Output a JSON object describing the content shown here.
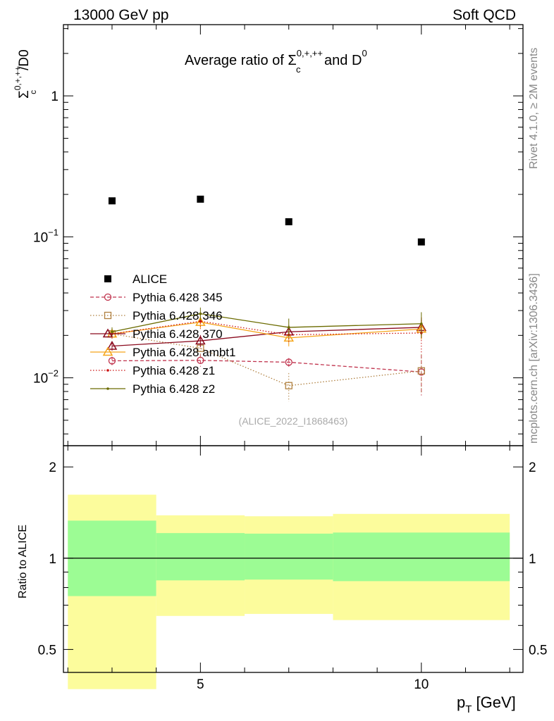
{
  "header": {
    "left": "13000 GeV pp",
    "right": "Soft QCD"
  },
  "side_text": {
    "rivet": "Rivet 4.1.0, ≥ 2M events",
    "mcplots": "mcplots.cern.ch [arXiv:1306.3436]"
  },
  "chart_data": [
    {
      "type": "scatter",
      "panel": "main",
      "title_prefix": "Average ratio of ",
      "title_symbol": "Σ",
      "title_sup": "0,+,++",
      "title_sub": "c",
      "title_mid": " and D",
      "title_sup2": "0",
      "ylabel_symbol": "Σ",
      "ylabel_sup": "0,+,++",
      "ylabel_sub": "c",
      "ylabel_rest": "/D0",
      "watermark": "(ALICE_2022_I1868463)",
      "yscale": "log",
      "ylim": [
        0.0033,
        3.2
      ],
      "xlim": [
        1.9,
        12.3
      ],
      "y_ticks": [
        {
          "value": 1,
          "base": "1",
          "exp": ""
        },
        {
          "value": 0.1,
          "base": "10",
          "exp": "−1"
        },
        {
          "value": 0.01,
          "base": "10",
          "exp": "−2"
        }
      ],
      "series": [
        {
          "name": "ALICE",
          "color": "#000000",
          "marker": "square-filled",
          "line": "none",
          "x": [
            3,
            5,
            7,
            10
          ],
          "y": [
            0.18,
            0.185,
            0.128,
            0.092
          ]
        },
        {
          "name": "Pythia 6.428 345",
          "color": "#c0334d",
          "marker": "circle-open",
          "line": "dashed",
          "x": [
            3,
            5,
            7,
            10
          ],
          "y": [
            0.0132,
            0.0133,
            0.0129,
            0.011
          ],
          "err": [
            0.0009,
            0.0013,
            0.0009,
            0.0035
          ]
        },
        {
          "name": "Pythia 6.428 346",
          "color": "#b08040",
          "marker": "square-open",
          "line": "dotted",
          "x": [
            3,
            5,
            7,
            10
          ],
          "y": [
            0.0205,
            0.0162,
            0.0088,
            0.0112
          ],
          "err": [
            0.0015,
            0.0025,
            0.002,
            0.0035
          ]
        },
        {
          "name": "Pythia 6.428 370",
          "color": "#8b0a1e",
          "marker": "triangle-open",
          "line": "solid",
          "x": [
            3,
            5,
            7,
            10
          ],
          "y": [
            0.0168,
            0.0183,
            0.0212,
            0.0228
          ],
          "err": [
            0.0012,
            0.0018,
            0.0025,
            0.0035
          ]
        },
        {
          "name": "Pythia 6.428 ambt1",
          "color": "#f5a51a",
          "marker": "triangle-open",
          "line": "solid",
          "x": [
            3,
            5,
            7,
            10
          ],
          "y": [
            0.0205,
            0.0248,
            0.0192,
            0.0222
          ],
          "err": [
            0.0015,
            0.0025,
            0.0025,
            0.0035
          ]
        },
        {
          "name": "Pythia 6.428 z1",
          "color": "#cc1010",
          "marker": "dot",
          "line": "dotted",
          "x": [
            3,
            5,
            7,
            10
          ],
          "y": [
            0.0205,
            0.0252,
            0.0202,
            0.0208
          ],
          "err": [
            0.0015,
            0.003,
            0.0028,
            0.006
          ]
        },
        {
          "name": "Pythia 6.428 z2",
          "color": "#6b6b00",
          "marker": "dot",
          "line": "solid",
          "x": [
            3,
            5,
            7,
            10
          ],
          "y": [
            0.0212,
            0.0285,
            0.0228,
            0.0242
          ],
          "err": [
            0.0016,
            0.003,
            0.0035,
            0.005
          ]
        }
      ]
    },
    {
      "type": "area",
      "panel": "ratio",
      "ylabel": "Ratio to ALICE",
      "xlabel_main": "p",
      "xlabel_sub": "T",
      "xlabel_unit": " [GeV]",
      "yscale": "log",
      "ylim": [
        0.42,
        2.35
      ],
      "xlim": [
        1.9,
        12.3
      ],
      "x_ticks": [
        {
          "value": 5,
          "label": "5"
        },
        {
          "value": 10,
          "label": "10"
        }
      ],
      "y_ticks": [
        {
          "value": 2,
          "label": "2"
        },
        {
          "value": 1,
          "label": "1"
        },
        {
          "value": 0.5,
          "label": "0.5"
        }
      ],
      "reference_line": 1,
      "bins": [
        {
          "x0": 2,
          "x1": 4,
          "band1_lo": 0.75,
          "band1_hi": 1.33,
          "band2_lo": 0.37,
          "band2_hi": 1.62
        },
        {
          "x0": 4,
          "x1": 6,
          "band1_lo": 0.845,
          "band1_hi": 1.21,
          "band2_lo": 0.645,
          "band2_hi": 1.385
        },
        {
          "x0": 6,
          "x1": 8,
          "band1_lo": 0.85,
          "band1_hi": 1.205,
          "band2_lo": 0.655,
          "band2_hi": 1.375
        },
        {
          "x0": 8,
          "x1": 12,
          "band1_lo": 0.84,
          "band1_hi": 1.215,
          "band2_lo": 0.625,
          "band2_hi": 1.4
        }
      ],
      "band1_color": "#9cfc94",
      "band2_color": "#fcfc9c"
    }
  ]
}
